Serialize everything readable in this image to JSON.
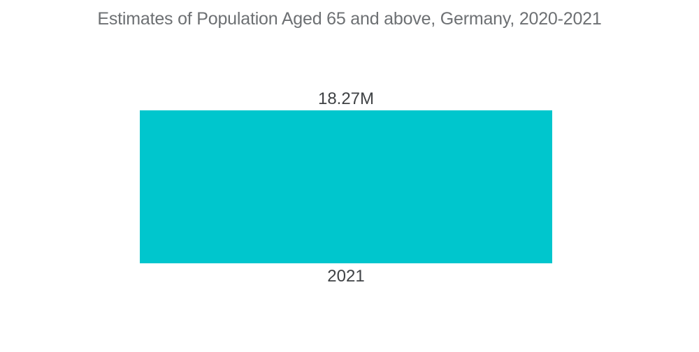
{
  "page": {
    "background": "#FFFFFF"
  },
  "chart_data": {
    "type": "bar",
    "title": "Estimates of Population Aged 65 and above, Germany, 2020-2021",
    "categories": [
      "2021"
    ],
    "values": [
      18.27
    ],
    "value_labels": [
      "18.27M"
    ],
    "unit": "M (millions of people)",
    "xlabel": "",
    "ylabel": "",
    "ylim": [
      0,
      18.27
    ],
    "grid": false,
    "legend": "none",
    "orientation": "vertical",
    "colors": {
      "bar": "#00C6CD",
      "title": "#6D7073",
      "labels": "#3F4245",
      "background": "#FFFFFF"
    }
  }
}
